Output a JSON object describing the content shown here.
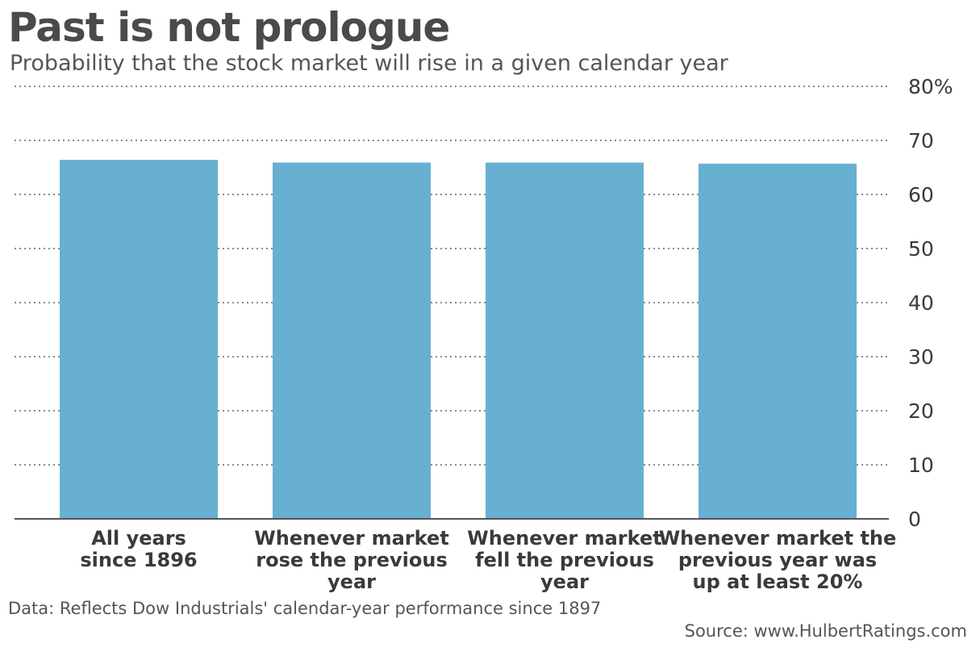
{
  "title": "Past is not prologue",
  "subtitle": "Probability that the stock market will rise in a given calendar year",
  "footnote": "Data: Reflects Dow Industrials' calendar-year performance since 1897",
  "source": "Source: www.HulbertRatings.com",
  "colors": {
    "bar": "#67b0d1",
    "grid": "#8a8a8a",
    "axis": "#555555",
    "text": "#3a3a3a"
  },
  "chart_data": {
    "type": "bar",
    "categories": [
      [
        "All years",
        "since 1896"
      ],
      [
        "Whenever market",
        "rose the previous",
        "year"
      ],
      [
        "Whenever market",
        "fell the previous",
        "year"
      ],
      [
        "Whenever market the",
        "previous year was",
        "up at least 20%"
      ]
    ],
    "values": [
      66.4,
      65.9,
      65.9,
      65.7
    ],
    "yticks": [
      0,
      10,
      20,
      30,
      40,
      50,
      60,
      70,
      80
    ],
    "ytick_labels": [
      "0",
      "10",
      "20",
      "30",
      "40",
      "50",
      "60",
      "70",
      "80%"
    ],
    "ylim": [
      0,
      80
    ],
    "grid": "dotted horizontal",
    "y_axis_side": "right"
  }
}
